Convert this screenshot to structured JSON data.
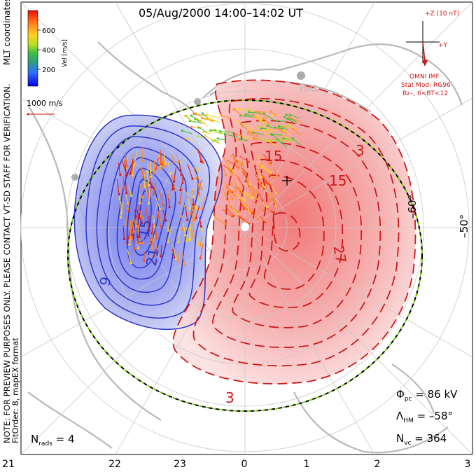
{
  "title": "05/Aug/2000  14:00–14:02  UT",
  "colorbar": {
    "label": "Vel [m/s]",
    "ticks": [
      "600",
      "400",
      "200"
    ],
    "colors": [
      "#0000e6",
      "#3070ff",
      "#2aa07a",
      "#44c040",
      "#b8e020",
      "#ffd020",
      "#ff9020",
      "#ff5010",
      "#e01010"
    ]
  },
  "coords_label": "MLT coordinates",
  "vector_scale": "1000 m/s",
  "imf": {
    "scale": "+Z (10 nT)",
    "y_label": "+Y",
    "source": "OMNI IMF",
    "model": "Stat Mod: RG96",
    "condition": "Bz–, 6<BT<12"
  },
  "note": "NOTE: FOR PREVIEW PURPOSES ONLY. PLEASE CONTACT VT-SD STAFF FOR VERIFICATION.",
  "fit": "FitOrder: 8, mapEX format",
  "station": "HAL",
  "latitude_labels": [
    "–60°",
    "–50°"
  ],
  "contour_labels": [
    "15",
    "15",
    "27",
    "3",
    "3",
    "15",
    "21",
    "9"
  ],
  "stats": {
    "phi_pc": "Φ",
    "phi_sub": "pc",
    "phi_val": " =  86 kV",
    "lambda": "Λ",
    "lambda_sub": "HM",
    "lambda_val": " =  –58°",
    "nvc": "N",
    "nvc_sub": "vc",
    "nvc_val": " =  364",
    "nrads": "N",
    "nrads_sub": "rads",
    "nrads_val": "  =  4"
  },
  "mlt_ticks": [
    "21",
    "22",
    "23",
    "0",
    "1",
    "2",
    "3"
  ],
  "dashed_boundary_colors": [
    "#000000",
    "#6dd000"
  ],
  "potential_colors": {
    "negative": "#2d35c8",
    "positive": "#d01818"
  }
}
